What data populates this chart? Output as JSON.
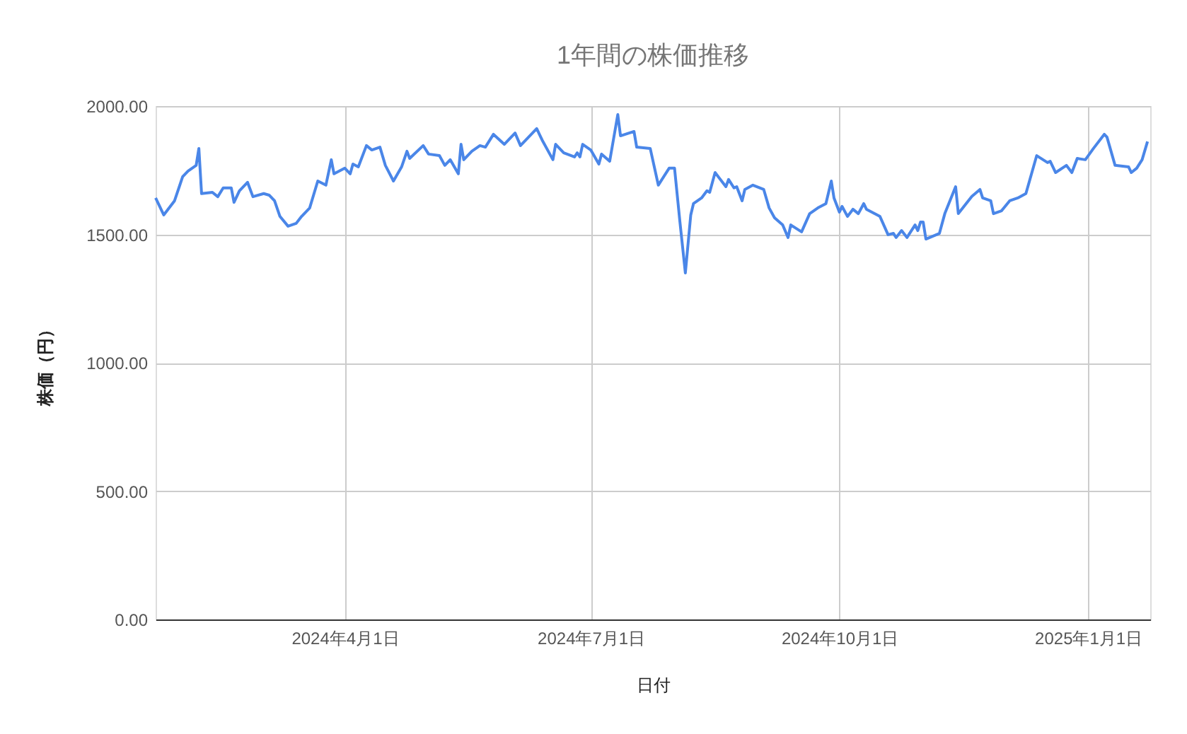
{
  "chart_data": {
    "type": "line",
    "title": "1年間の株価推移",
    "xlabel": "日付",
    "ylabel": "株価（円）",
    "x": [
      "2024-01-22",
      "2024-01-25",
      "2024-01-29",
      "2024-02-01",
      "2024-02-03",
      "2024-02-06",
      "2024-02-07",
      "2024-02-08",
      "2024-02-12",
      "2024-02-14",
      "2024-02-16",
      "2024-02-19",
      "2024-02-20",
      "2024-02-22",
      "2024-02-25",
      "2024-02-27",
      "2024-03-02",
      "2024-03-04",
      "2024-03-06",
      "2024-03-08",
      "2024-03-11",
      "2024-03-14",
      "2024-03-16",
      "2024-03-19",
      "2024-03-22",
      "2024-03-25",
      "2024-03-27",
      "2024-03-28",
      "2024-04-01",
      "2024-04-03",
      "2024-04-04",
      "2024-04-06",
      "2024-04-09",
      "2024-04-11",
      "2024-04-14",
      "2024-04-16",
      "2024-04-19",
      "2024-04-22",
      "2024-04-24",
      "2024-04-25",
      "2024-04-30",
      "2024-05-02",
      "2024-05-06",
      "2024-05-08",
      "2024-05-10",
      "2024-05-13",
      "2024-05-14",
      "2024-05-15",
      "2024-05-18",
      "2024-05-21",
      "2024-05-23",
      "2024-05-26",
      "2024-05-30",
      "2024-06-03",
      "2024-06-05",
      "2024-06-07",
      "2024-06-11",
      "2024-06-13",
      "2024-06-17",
      "2024-06-18",
      "2024-06-21",
      "2024-06-25",
      "2024-06-26",
      "2024-06-27",
      "2024-06-28",
      "2024-07-01",
      "2024-07-04",
      "2024-07-05",
      "2024-07-08",
      "2024-07-11",
      "2024-07-12",
      "2024-07-17",
      "2024-07-18",
      "2024-07-23",
      "2024-07-26",
      "2024-07-30",
      "2024-08-01",
      "2024-08-03",
      "2024-08-05",
      "2024-08-07",
      "2024-08-08",
      "2024-08-11",
      "2024-08-13",
      "2024-08-14",
      "2024-08-16",
      "2024-08-20",
      "2024-08-21",
      "2024-08-23",
      "2024-08-24",
      "2024-08-26",
      "2024-08-27",
      "2024-08-30",
      "2024-09-03",
      "2024-09-05",
      "2024-09-07",
      "2024-09-10",
      "2024-09-12",
      "2024-09-13",
      "2024-09-17",
      "2024-09-20",
      "2024-09-23",
      "2024-09-26",
      "2024-09-28",
      "2024-09-29",
      "2024-10-01",
      "2024-10-02",
      "2024-10-04",
      "2024-10-06",
      "2024-10-08",
      "2024-10-10",
      "2024-10-11",
      "2024-10-16",
      "2024-10-19",
      "2024-10-21",
      "2024-10-22",
      "2024-10-24",
      "2024-10-26",
      "2024-10-29",
      "2024-10-30",
      "2024-10-31",
      "2024-11-01",
      "2024-11-02",
      "2024-11-07",
      "2024-11-09",
      "2024-11-13",
      "2024-11-14",
      "2024-11-19",
      "2024-11-22",
      "2024-11-23",
      "2024-11-26",
      "2024-11-27",
      "2024-11-30",
      "2024-12-03",
      "2024-12-06",
      "2024-12-09",
      "2024-12-13",
      "2024-12-17",
      "2024-12-18",
      "2024-12-20",
      "2024-12-24",
      "2024-12-26",
      "2024-12-28",
      "2024-12-31",
      "2025-01-03",
      "2025-01-07",
      "2025-01-08",
      "2025-01-11",
      "2025-01-16",
      "2025-01-17",
      "2025-01-19",
      "2025-01-21",
      "2025-01-23"
    ],
    "series": [
      {
        "color": "#4a86e8",
        "values": [
          1642,
          1576,
          1631,
          1725,
          1747,
          1769,
          1835,
          1659,
          1664,
          1647,
          1681,
          1681,
          1625,
          1670,
          1703,
          1647,
          1659,
          1653,
          1631,
          1570,
          1532,
          1543,
          1570,
          1603,
          1708,
          1692,
          1791,
          1736,
          1758,
          1736,
          1774,
          1763,
          1846,
          1829,
          1840,
          1769,
          1708,
          1763,
          1824,
          1796,
          1846,
          1813,
          1807,
          1769,
          1791,
          1736,
          1851,
          1791,
          1824,
          1846,
          1840,
          1890,
          1851,
          1895,
          1846,
          1868,
          1912,
          1868,
          1791,
          1851,
          1818,
          1802,
          1818,
          1802,
          1851,
          1829,
          1774,
          1813,
          1785,
          1967,
          1884,
          1901,
          1840,
          1835,
          1692,
          1758,
          1758,
          1548,
          1350,
          1576,
          1620,
          1642,
          1670,
          1664,
          1741,
          1686,
          1714,
          1681,
          1686,
          1631,
          1675,
          1692,
          1675,
          1603,
          1565,
          1537,
          1488,
          1537,
          1510,
          1581,
          1603,
          1620,
          1708,
          1642,
          1587,
          1609,
          1570,
          1598,
          1581,
          1620,
          1598,
          1570,
          1499,
          1504,
          1488,
          1515,
          1488,
          1537,
          1515,
          1548,
          1548,
          1482,
          1504,
          1581,
          1686,
          1581,
          1648,
          1675,
          1642,
          1631,
          1581,
          1592,
          1631,
          1642,
          1659,
          1807,
          1780,
          1785,
          1741,
          1769,
          1741,
          1796,
          1791,
          1835,
          1890,
          1879,
          1769,
          1763,
          1741,
          1758,
          1791,
          1862
        ]
      }
    ],
    "xlim": [
      "2024-01-22",
      "2025-01-24"
    ],
    "xticks": [
      {
        "value": "2024-04-01",
        "label": "2024年4月1日"
      },
      {
        "value": "2024-07-01",
        "label": "2024年7月1日"
      },
      {
        "value": "2024-10-01",
        "label": "2024年10月1日"
      },
      {
        "value": "2025-01-01",
        "label": "2025年1月1日"
      }
    ],
    "ylim": [
      0,
      2000
    ],
    "yticks": [
      {
        "value": 0,
        "label": "0.00"
      },
      {
        "value": 500,
        "label": "500.00"
      },
      {
        "value": 1000,
        "label": "1000.00"
      },
      {
        "value": 1500,
        "label": "1500.00"
      },
      {
        "value": 2000,
        "label": "2000.00"
      }
    ],
    "grid": true,
    "marker": "none",
    "line_style": "solid"
  }
}
